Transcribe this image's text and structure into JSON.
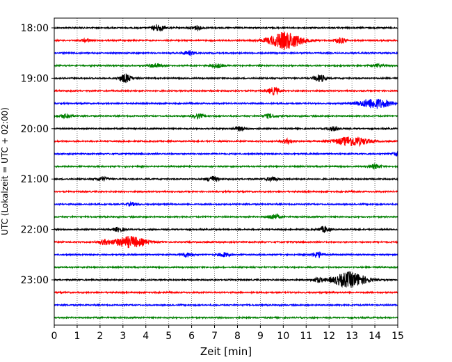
{
  "chart_data": {
    "type": "line",
    "title": "",
    "xlabel": "Zeit  [min]",
    "ylabel": "UTC (Lokalzeit = UTC + 02:00)",
    "xlim": [
      0,
      15
    ],
    "x_ticks": [
      "0",
      "1",
      "2",
      "3",
      "4",
      "5",
      "6",
      "7",
      "8",
      "9",
      "10",
      "11",
      "12",
      "13",
      "14",
      "15"
    ],
    "y_ticks": [
      "18:00",
      "19:00",
      "20:00",
      "21:00",
      "22:00",
      "23:00"
    ],
    "grid": "vertical-dotted",
    "trace_interval_minutes": 15,
    "trace_colors": [
      "#000000",
      "#ff0000",
      "#0000ff",
      "#008000"
    ],
    "traces": [
      {
        "start": "18:00",
        "color": "#000000",
        "events": [
          [
            4.55,
            5
          ],
          [
            6.2,
            3
          ]
        ]
      },
      {
        "start": "18:15",
        "color": "#ff0000",
        "events": [
          [
            1.4,
            2
          ],
          [
            10.1,
            12
          ],
          [
            12.5,
            4
          ]
        ]
      },
      {
        "start": "18:30",
        "color": "#0000ff",
        "events": [
          [
            5.9,
            3
          ]
        ]
      },
      {
        "start": "18:45",
        "color": "#008000",
        "events": [
          [
            4.4,
            3
          ],
          [
            7.1,
            3
          ],
          [
            14.1,
            2
          ]
        ]
      },
      {
        "start": "19:00",
        "color": "#000000",
        "events": [
          [
            3.1,
            6
          ],
          [
            11.6,
            5
          ]
        ]
      },
      {
        "start": "19:15",
        "color": "#ff0000",
        "events": [
          [
            9.6,
            5
          ]
        ]
      },
      {
        "start": "19:30",
        "color": "#0000ff",
        "events": [
          [
            14.0,
            7
          ]
        ]
      },
      {
        "start": "19:45",
        "color": "#008000",
        "events": [
          [
            0.5,
            3
          ],
          [
            6.3,
            3
          ],
          [
            9.4,
            3
          ]
        ]
      },
      {
        "start": "20:00",
        "color": "#000000",
        "events": [
          [
            8.1,
            3
          ],
          [
            12.2,
            3
          ]
        ]
      },
      {
        "start": "20:15",
        "color": "#ff0000",
        "events": [
          [
            10.2,
            3
          ],
          [
            13.0,
            7
          ]
        ]
      },
      {
        "start": "20:30",
        "color": "#0000ff",
        "events": [
          [
            15.0,
            3
          ]
        ]
      },
      {
        "start": "20:45",
        "color": "#008000",
        "events": [
          [
            14.0,
            3
          ]
        ]
      },
      {
        "start": "21:00",
        "color": "#000000",
        "events": [
          [
            2.1,
            3
          ],
          [
            6.9,
            4
          ],
          [
            9.5,
            3
          ]
        ]
      },
      {
        "start": "21:15",
        "color": "#ff0000",
        "events": []
      },
      {
        "start": "21:30",
        "color": "#0000ff",
        "events": [
          [
            3.4,
            2
          ]
        ]
      },
      {
        "start": "21:45",
        "color": "#008000",
        "events": [
          [
            9.6,
            4
          ]
        ]
      },
      {
        "start": "22:00",
        "color": "#000000",
        "events": [
          [
            2.8,
            3
          ],
          [
            11.8,
            4
          ]
        ]
      },
      {
        "start": "22:15",
        "color": "#ff0000",
        "events": [
          [
            2.2,
            3
          ],
          [
            3.3,
            8
          ]
        ]
      },
      {
        "start": "22:30",
        "color": "#0000ff",
        "events": [
          [
            5.8,
            3
          ],
          [
            7.4,
            3
          ],
          [
            11.5,
            4
          ]
        ]
      },
      {
        "start": "22:45",
        "color": "#008000",
        "events": []
      },
      {
        "start": "23:00",
        "color": "#000000",
        "events": [
          [
            11.5,
            3
          ],
          [
            12.9,
            11
          ]
        ]
      },
      {
        "start": "23:15",
        "color": "#ff0000",
        "events": []
      },
      {
        "start": "23:30",
        "color": "#0000ff",
        "events": []
      },
      {
        "start": "23:45",
        "color": "#008000",
        "events": []
      }
    ]
  }
}
